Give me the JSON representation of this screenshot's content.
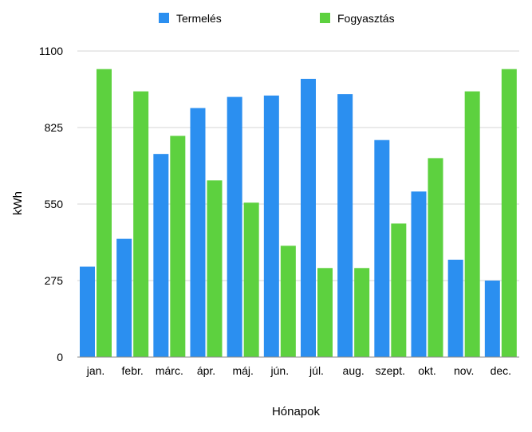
{
  "chart_data": {
    "type": "bar",
    "title": "",
    "xlabel": "Hónapok",
    "ylabel": "kWh",
    "ylim": [
      0,
      1100
    ],
    "yticks": [
      "0",
      "275",
      "550",
      "825",
      "1100"
    ],
    "ytick_values": [
      0,
      275,
      550,
      825,
      1100
    ],
    "grid": true,
    "legend_position": "top-center",
    "categories": [
      "jan.",
      "febr.",
      "márc.",
      "ápr.",
      "máj.",
      "jún.",
      "júl.",
      "aug.",
      "szept.",
      "okt.",
      "nov.",
      "dec."
    ],
    "series": [
      {
        "name": "Termelés",
        "color": "#2b8ff0",
        "values": [
          325,
          425,
          730,
          895,
          935,
          940,
          1000,
          945,
          780,
          595,
          350,
          275
        ]
      },
      {
        "name": "Fogyasztás",
        "color": "#5dd13f",
        "values": [
          1035,
          955,
          795,
          635,
          555,
          400,
          320,
          320,
          480,
          715,
          955,
          1035
        ]
      }
    ]
  }
}
